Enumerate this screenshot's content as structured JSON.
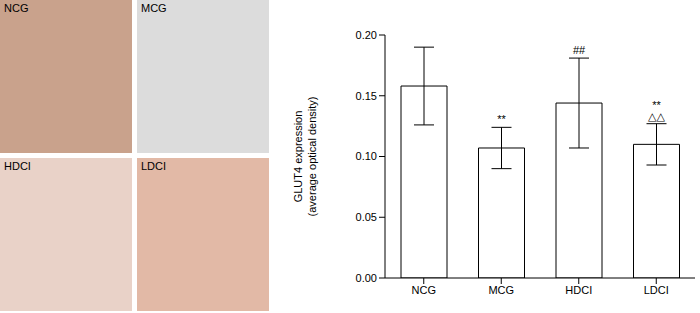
{
  "chart_data": {
    "type": "bar",
    "panels": [
      "NCG",
      "MCG",
      "HDCI",
      "LDCI"
    ],
    "ylabel": [
      "GLUT4 expression",
      "(average optical density)"
    ],
    "categories": [
      "NCG",
      "MCG",
      "HDCI",
      "LDCI"
    ],
    "values": [
      0.158,
      0.107,
      0.144,
      0.11
    ],
    "errors": [
      0.032,
      0.017,
      0.037,
      0.017
    ],
    "annotations": [
      [],
      [
        "**"
      ],
      [
        "##"
      ],
      [
        "**",
        "△△"
      ]
    ],
    "color": "#ffffff",
    "ylim": [
      0,
      0.2
    ],
    "yticks": [
      {
        "value": 0,
        "label": "0.00"
      },
      {
        "value": 0.05,
        "label": "0.05"
      },
      {
        "value": 0.1,
        "label": "0.10"
      },
      {
        "value": 0.15,
        "label": "0.15"
      },
      {
        "value": 0.2,
        "label": "0.20"
      }
    ],
    "grid": false
  }
}
